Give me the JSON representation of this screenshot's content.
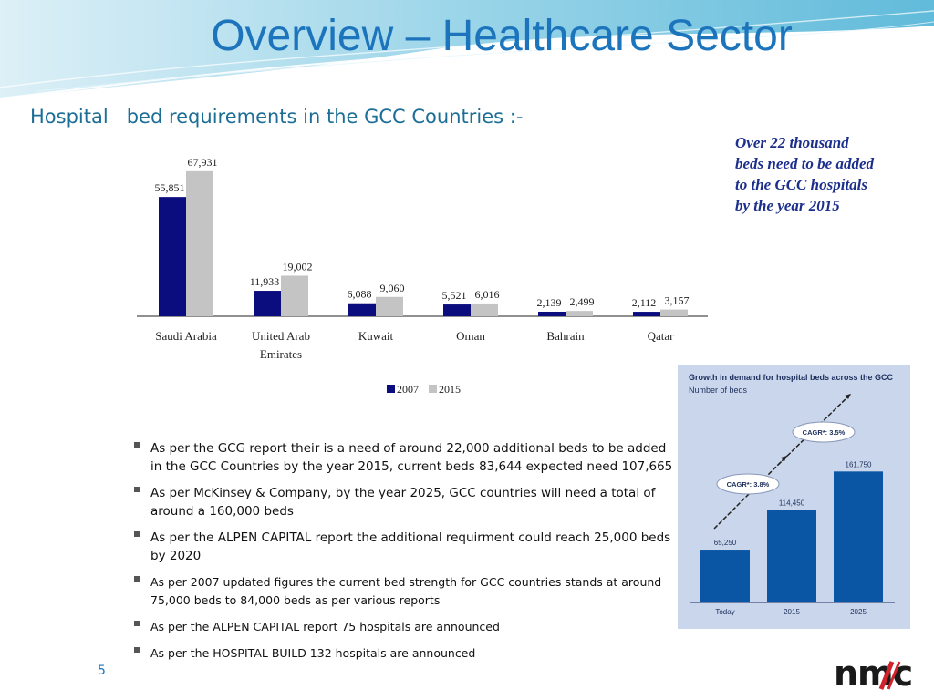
{
  "slide": {
    "title": "Overview – Healthcare Sector",
    "subtitle": "Hospital   bed requirements in the GCC Countries :-",
    "page_number": "5",
    "callout": [
      "Over 22 thousand",
      "beds need to be added",
      "to the GCC hospitals",
      "by the year 2015"
    ],
    "logo_text": "nmc"
  },
  "bullets": [
    "As per the GCG report their is a need of around 22,000 additional beds to be added in the GCC Countries by the year 2015, current beds 83,644 expected need 107,665",
    "As per McKinsey & Company, by the year 2025, GCC countries will need a total of around a 160,000 beds",
    "As per the ALPEN CAPITAL report the additional requirment could reach 25,000 beds by 2020",
    "As per 2007 updated figures the current bed strength for GCC countries stands at around 75,000 beds to 84,000 beds as per various reports",
    "As per the ALPEN CAPITAL report 75 hospitals are announced",
    "As per the HOSPITAL BUILD 132 hospitals are announced"
  ],
  "colors": {
    "title": "#1c75bc",
    "subtitle": "#1c6e96",
    "series_2007": "#0b0d7e",
    "series_2015": "#c4c4c4",
    "growth_bar": "#0a56a4",
    "growth_panel": "#c9d6ec"
  },
  "chart_data": [
    {
      "type": "bar",
      "title": "",
      "xlabel": "",
      "ylabel": "",
      "categories": [
        [
          "Saudi Arabia"
        ],
        [
          "United Arab",
          "Emirates"
        ],
        [
          "Kuwait"
        ],
        [
          "Oman"
        ],
        [
          "Bahrain"
        ],
        [
          "Qatar"
        ]
      ],
      "series": [
        {
          "name": "2007",
          "values": [
            55851,
            11933,
            6088,
            5521,
            2139,
            2112
          ],
          "labels": [
            "55,851",
            "11,933",
            "6,088",
            "5,521",
            "2,139",
            "2,112"
          ]
        },
        {
          "name": "2015",
          "values": [
            67931,
            19002,
            9060,
            6016,
            2499,
            3157
          ],
          "labels": [
            "67,931",
            "19,002",
            "9,060",
            "6,016",
            "2,499",
            "3,157"
          ]
        }
      ],
      "ylim": [
        0,
        70000
      ],
      "grid": false,
      "legend": "bottom"
    },
    {
      "type": "bar",
      "title": "Growth in demand for hospital beds across the GCC",
      "subtitle": "Number of beds",
      "categories": [
        "Today",
        "2015",
        "2025"
      ],
      "values": [
        65250,
        114450,
        161750
      ],
      "labels": [
        "65,250",
        "114,450",
        "161,750"
      ],
      "annotations": [
        "CAGR*: 3.8%",
        "CAGR*: 3.5%"
      ],
      "ylim": [
        0,
        170000
      ],
      "grid": false
    }
  ]
}
